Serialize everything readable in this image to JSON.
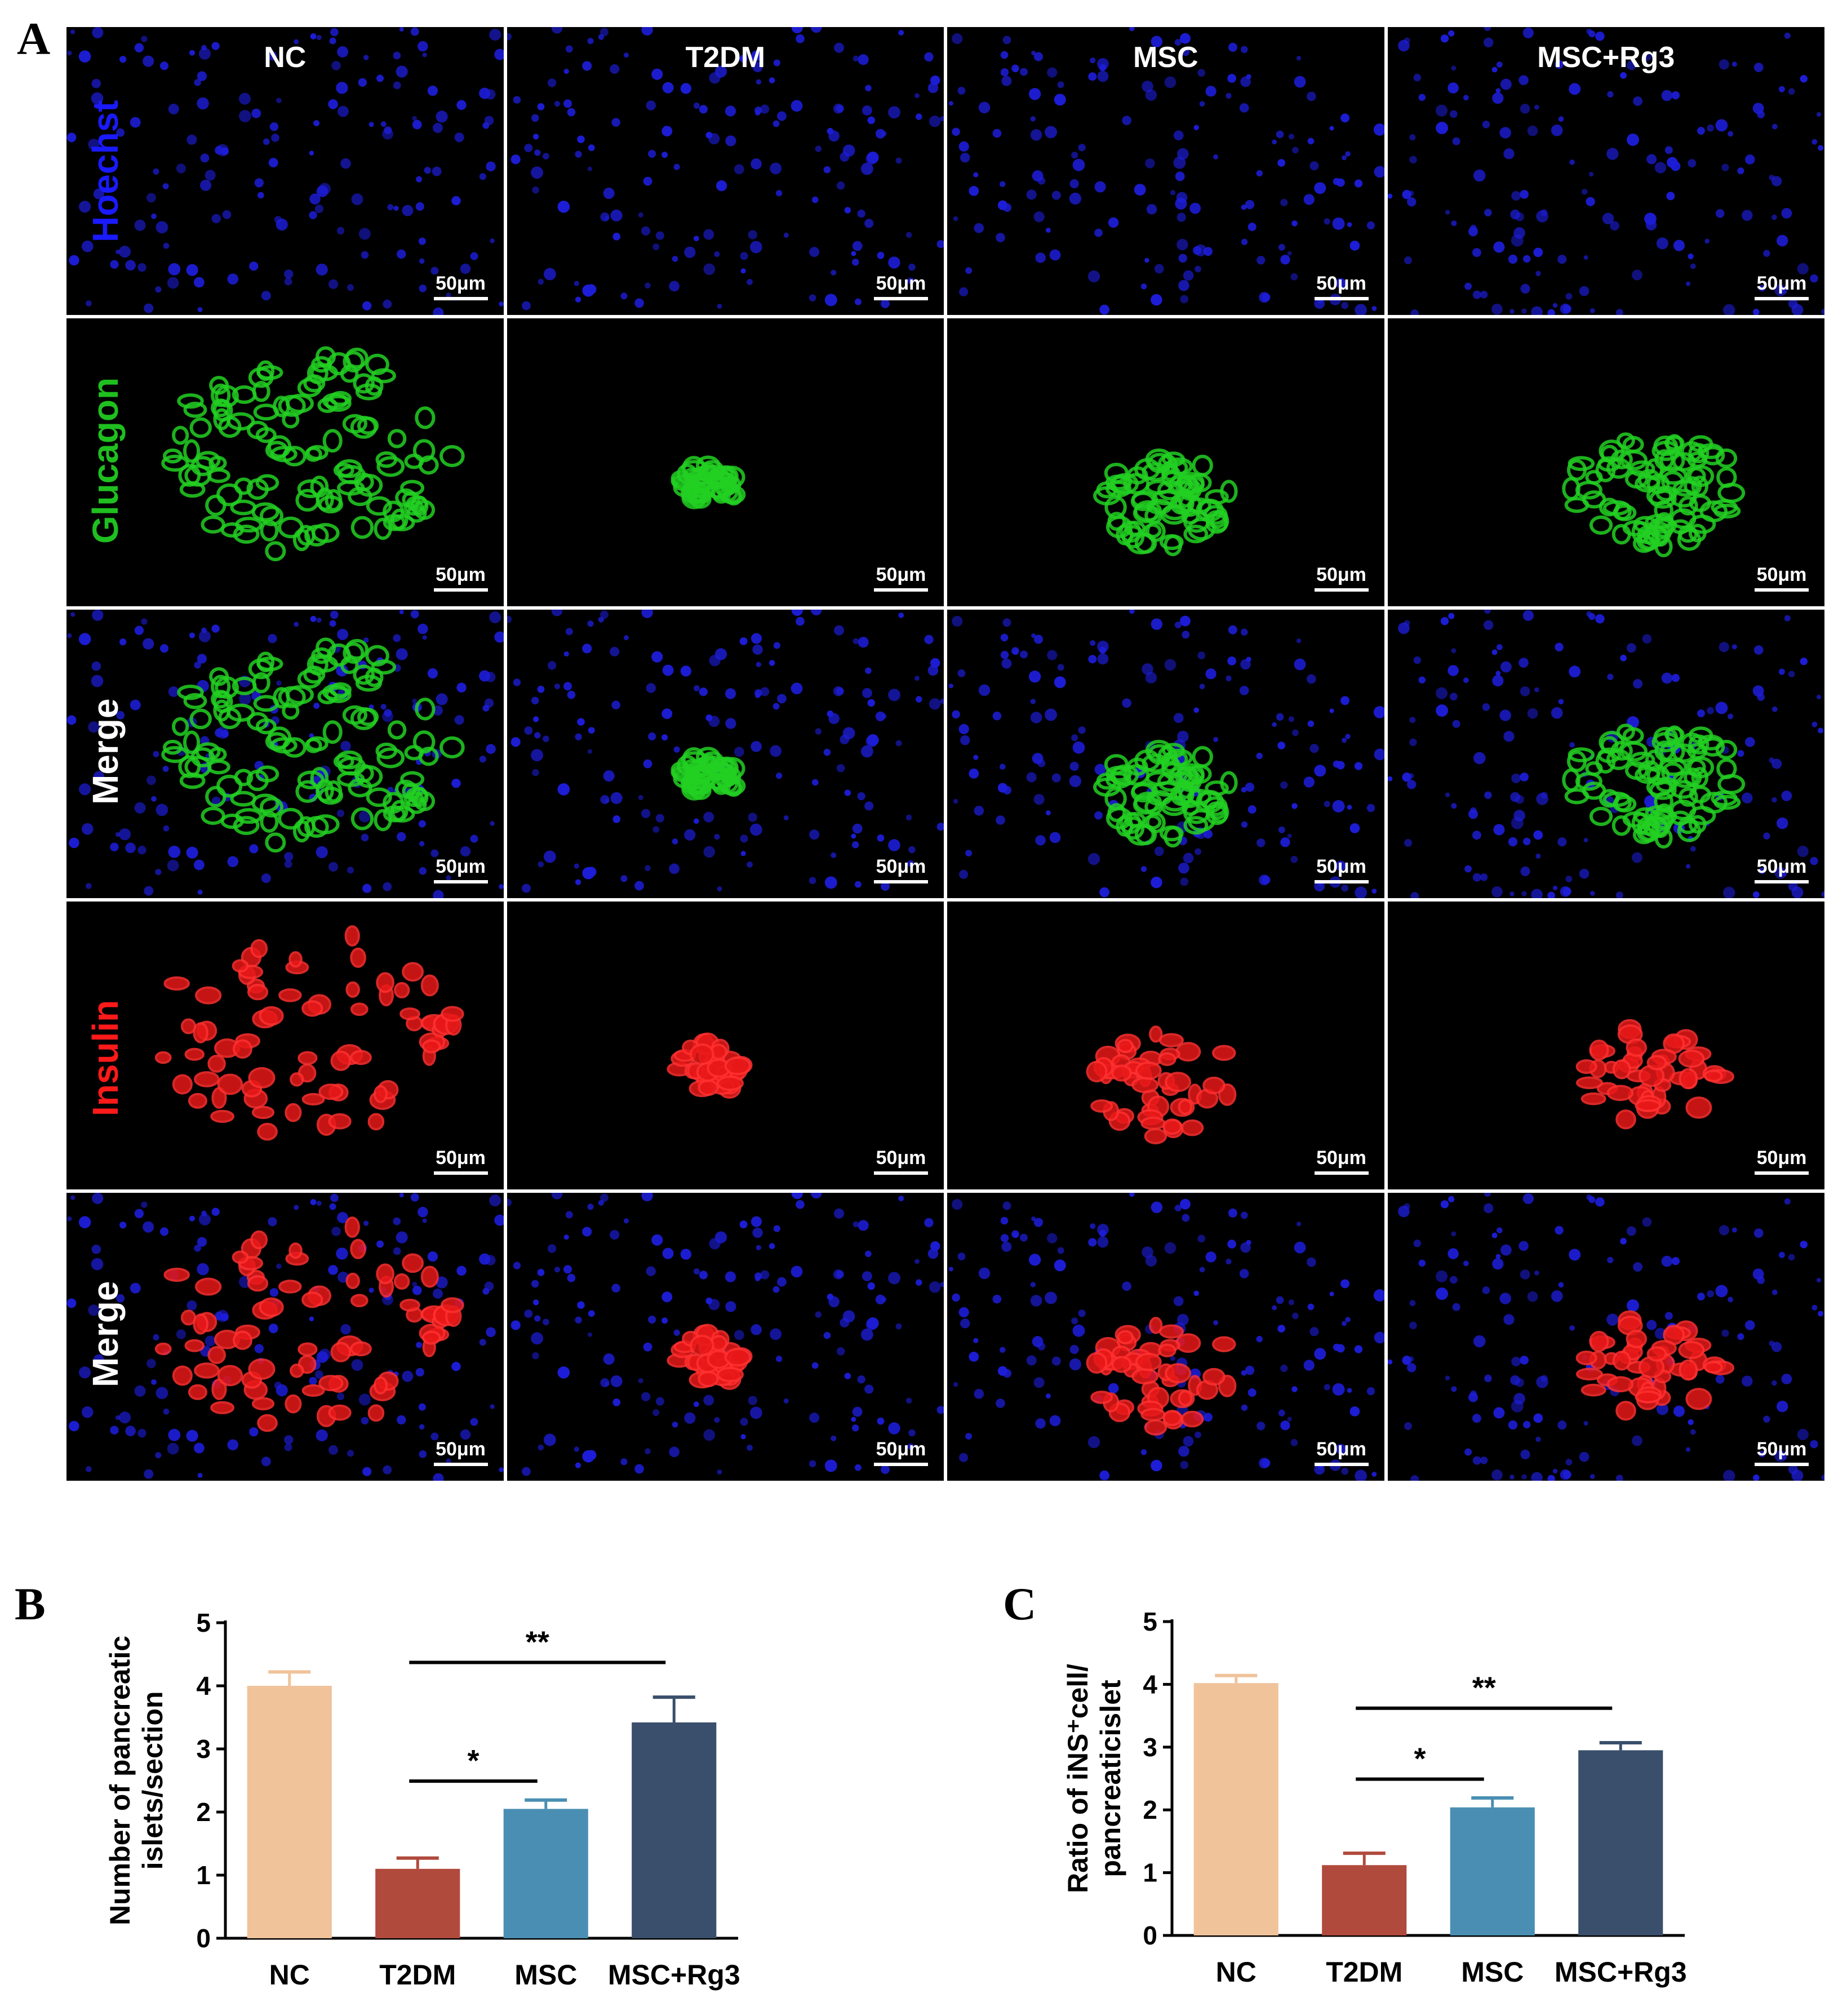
{
  "panel_labels": {
    "a": "A",
    "b": "B",
    "c": "C"
  },
  "microscopy": {
    "columns": [
      "NC",
      "T2DM",
      "MSC",
      "MSC+Rg3"
    ],
    "rows": [
      {
        "label": "Hoechst",
        "color": "#1a1aff",
        "stain": "nuclei"
      },
      {
        "label": "Glucagon",
        "color": "#1fbf1f",
        "stain": "glucagon"
      },
      {
        "label": "Merge",
        "color": "#ffffff",
        "stain": "merge-glucagon"
      },
      {
        "label": "Insulin",
        "color": "#ff1a1a",
        "stain": "insulin"
      },
      {
        "label": "Merge",
        "color": "#ffffff",
        "stain": "merge-insulin"
      }
    ],
    "scale_bar": "50μm"
  },
  "chart_data": [
    {
      "type": "bar",
      "panel": "B",
      "title": "",
      "ylabel": "Number of pancreatic islets/section",
      "categories": [
        "NC",
        "T2DM",
        "MSC",
        "MSC+Rg3"
      ],
      "values": [
        4.0,
        1.1,
        2.05,
        3.42
      ],
      "errors": [
        0.22,
        0.17,
        0.14,
        0.4
      ],
      "colors": [
        "#f0c39b",
        "#b04a3d",
        "#4a8fb3",
        "#394f6b"
      ],
      "ylim": [
        0,
        5
      ],
      "yticks": [
        0,
        1,
        2,
        3,
        4,
        5
      ],
      "significance": [
        {
          "from": "T2DM",
          "to": "MSC",
          "label": "*"
        },
        {
          "from": "T2DM",
          "to": "MSC+Rg3",
          "label": "**"
        }
      ]
    },
    {
      "type": "bar",
      "panel": "C",
      "title": "",
      "ylabel": "Ratio of iNS⁺cell/ pancreaticislet",
      "categories": [
        "NC",
        "T2DM",
        "MSC",
        "MSC+Rg3"
      ],
      "values": [
        4.02,
        1.12,
        2.04,
        2.95
      ],
      "errors": [
        0.12,
        0.19,
        0.15,
        0.12
      ],
      "colors": [
        "#f0c39b",
        "#b04a3d",
        "#4a8fb3",
        "#394f6b"
      ],
      "ylim": [
        0,
        5
      ],
      "yticks": [
        0,
        1,
        2,
        3,
        4,
        5
      ],
      "significance": [
        {
          "from": "T2DM",
          "to": "MSC",
          "label": "*"
        },
        {
          "from": "T2DM",
          "to": "MSC+Rg3",
          "label": "**"
        }
      ]
    }
  ]
}
